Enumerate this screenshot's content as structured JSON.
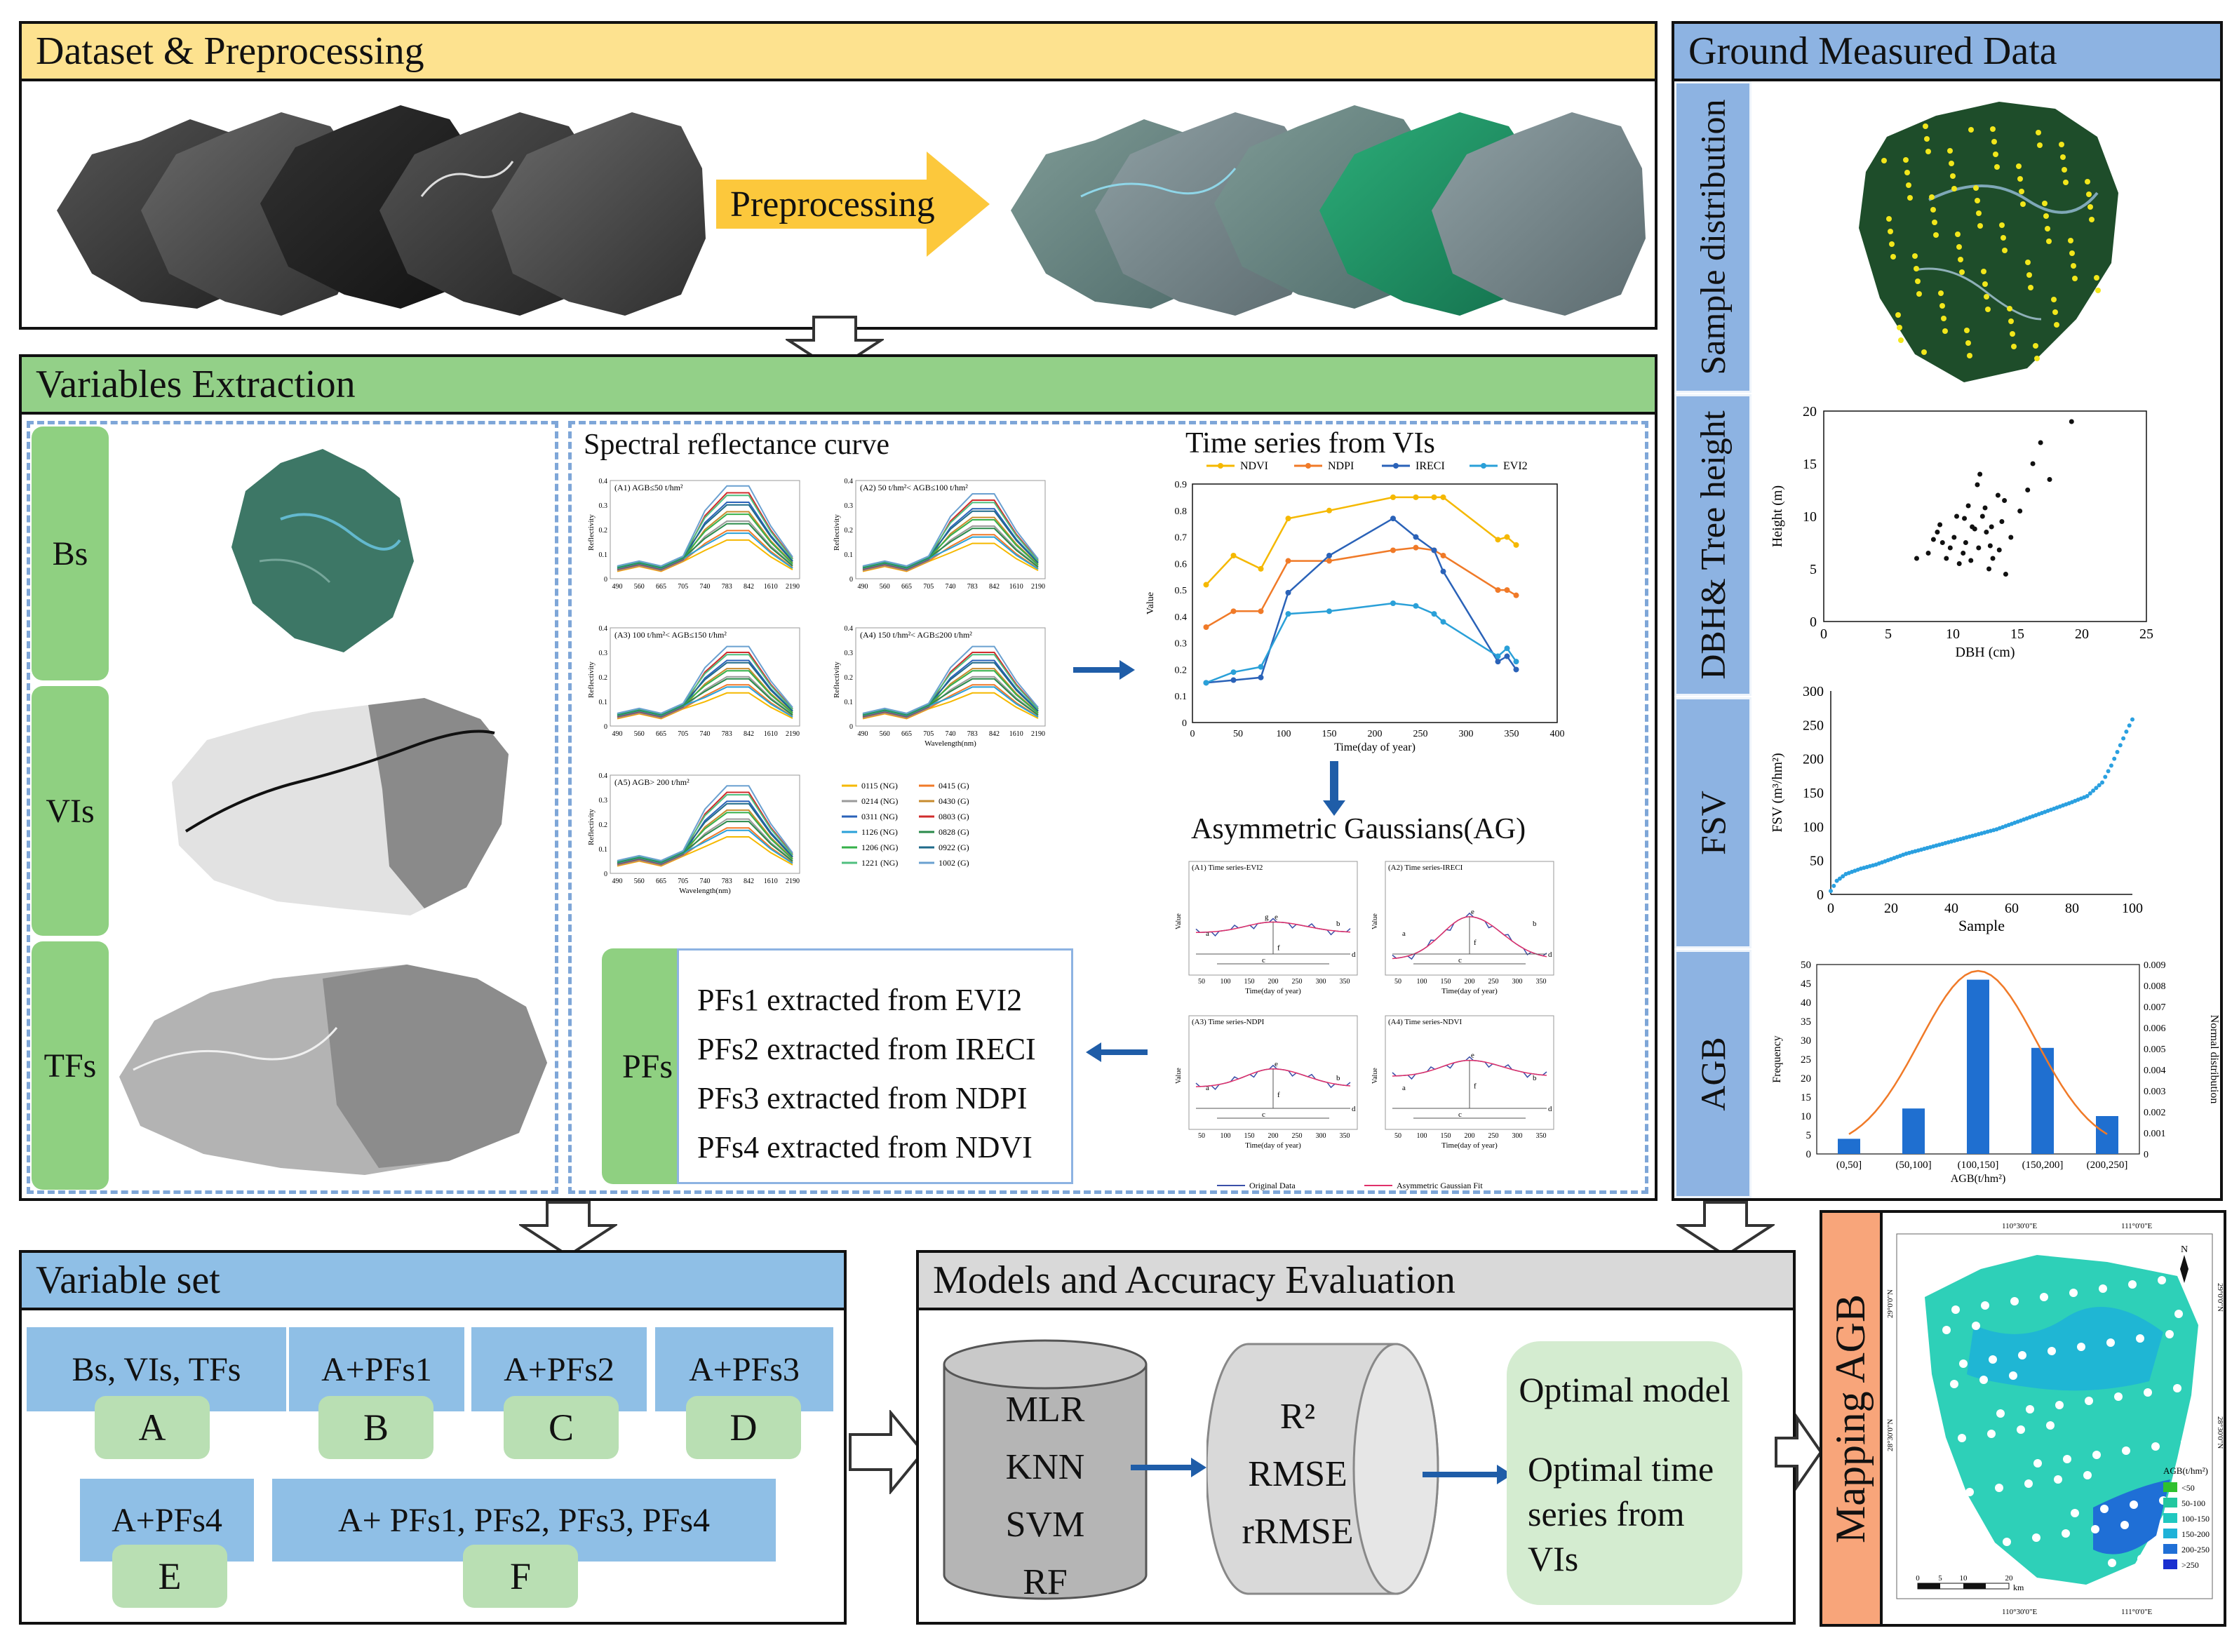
{
  "sections": {
    "dataset": "Dataset & Preprocessing",
    "ground": "Ground Measured Data",
    "variables": "Variables Extraction",
    "variable_set": "Variable set",
    "models": "Models and Accuracy Evaluation",
    "mapping": "Mapping AGB"
  },
  "preprocessing_label": "Preprocessing",
  "var_tags": [
    "Bs",
    "VIs",
    "TFs"
  ],
  "spectral": {
    "title": "Spectral reflectance curve",
    "panels": [
      "(A1) AGB≤50 t/hm²",
      "(A2) 50 t/hm²< AGB≤100 t/hm²",
      "(A3) 100 t/hm²< AGB≤150 t/hm²",
      "(A4) 150 t/hm²< AGB≤200 t/hm²",
      "(A5) AGB> 200 t/hm²"
    ],
    "ylabel": "Reflectivity",
    "xlabel": "Wavelength(nm)",
    "wavelengths": [
      "490",
      "560",
      "665",
      "705",
      "740",
      "783",
      "842",
      "1610",
      "2190"
    ],
    "yticks": [
      "0",
      "0.1",
      "0.2",
      "0.3",
      "0.4"
    ],
    "legend": [
      "0115 (NG)",
      "0415 (G)",
      "0214 (NG)",
      "0430 (G)",
      "0311 (NG)",
      "0803 (G)",
      "1126 (NG)",
      "0828 (G)",
      "1206 (NG)",
      "0922 (G)",
      "1221 (NG)",
      "1002 (G)"
    ]
  },
  "timeseries": {
    "title": "Time series from VIs",
    "legend": [
      "NDVI",
      "NDPI",
      "IRECI",
      "EVI2"
    ],
    "ylabel": "Value",
    "xlabel": "Time(day of year)",
    "colors": {
      "NDVI": "#f5b800",
      "NDPI": "#f07a28",
      "IRECI": "#2a62b8",
      "EVI2": "#2aa0d8"
    }
  },
  "chart_data": [
    {
      "type": "line",
      "title": "Time series from VIs",
      "xlabel": "Time(day of year)",
      "ylabel": "Value",
      "xlim": [
        0,
        400
      ],
      "ylim": [
        0,
        0.9
      ],
      "xticks": [
        0,
        50,
        100,
        150,
        200,
        250,
        300,
        350,
        400
      ],
      "yticks": [
        0,
        0.1,
        0.2,
        0.3,
        0.4,
        0.5,
        0.6,
        0.7,
        0.8,
        0.9
      ],
      "series": [
        {
          "name": "NDVI",
          "x": [
            15,
            45,
            75,
            105,
            150,
            220,
            245,
            265,
            275,
            335,
            345,
            355
          ],
          "y": [
            0.52,
            0.63,
            0.58,
            0.77,
            0.8,
            0.85,
            0.85,
            0.85,
            0.85,
            0.69,
            0.7,
            0.67
          ]
        },
        {
          "name": "NDPI",
          "x": [
            15,
            45,
            75,
            105,
            150,
            220,
            245,
            265,
            275,
            335,
            345,
            355
          ],
          "y": [
            0.36,
            0.42,
            0.42,
            0.61,
            0.61,
            0.65,
            0.66,
            0.65,
            0.63,
            0.5,
            0.5,
            0.48
          ]
        },
        {
          "name": "IRECI",
          "x": [
            15,
            45,
            75,
            105,
            150,
            220,
            245,
            265,
            275,
            335,
            345,
            355
          ],
          "y": [
            0.15,
            0.16,
            0.17,
            0.49,
            0.63,
            0.77,
            0.7,
            0.65,
            0.57,
            0.23,
            0.25,
            0.2
          ]
        },
        {
          "name": "EVI2",
          "x": [
            15,
            45,
            75,
            105,
            150,
            220,
            245,
            265,
            275,
            335,
            345,
            355
          ],
          "y": [
            0.15,
            0.19,
            0.21,
            0.41,
            0.42,
            0.45,
            0.44,
            0.41,
            0.38,
            0.25,
            0.28,
            0.23
          ]
        }
      ]
    },
    {
      "type": "scatter",
      "title": "DBH& Tree height",
      "xlabel": "DBH (cm)",
      "ylabel": "Height (m)",
      "xlim": [
        0,
        25
      ],
      "ylim": [
        0,
        20
      ],
      "xticks": [
        0,
        5,
        10,
        15,
        20,
        25
      ],
      "yticks": [
        0,
        5,
        10,
        15,
        20
      ],
      "x": [
        9.2,
        10.1,
        10.8,
        11.5,
        12.0,
        12.6,
        13.1,
        13.8,
        14.5,
        15.2,
        8.1,
        9.8,
        11.2,
        12.3,
        13.5,
        10.5,
        11.9,
        12.8,
        14.1,
        16.2,
        17.5,
        19.2,
        8.8,
        9.5,
        10.3,
        11.0,
        12.1,
        13.0,
        14.0,
        7.2,
        8.5,
        11.7,
        12.9,
        13.6,
        15.8,
        16.8,
        10.9,
        11.4,
        12.5,
        9.0
      ],
      "y": [
        7.5,
        8.0,
        6.5,
        9.0,
        7.0,
        8.5,
        6.0,
        9.5,
        8.0,
        10.5,
        6.5,
        7.0,
        11.0,
        10.0,
        12.0,
        5.5,
        13.0,
        5.0,
        4.5,
        15.0,
        13.5,
        19.0,
        8.5,
        6.0,
        10.0,
        7.5,
        14.0,
        9.0,
        11.5,
        6.0,
        7.8,
        8.8,
        7.2,
        6.8,
        12.5,
        17.0,
        9.8,
        5.8,
        10.8,
        9.2
      ]
    },
    {
      "type": "scatter",
      "title": "FSV",
      "xlabel": "Sample",
      "ylabel": "FSV (m³/hm²)",
      "xlim": [
        0,
        100
      ],
      "ylim": [
        0,
        300
      ],
      "xticks": [
        0,
        20,
        40,
        60,
        80,
        100
      ],
      "yticks": [
        0,
        50,
        100,
        150,
        200,
        250,
        300
      ],
      "x": [
        0,
        2,
        5,
        10,
        15,
        20,
        25,
        30,
        35,
        40,
        45,
        50,
        55,
        60,
        65,
        70,
        75,
        80,
        85,
        90,
        93,
        96,
        98,
        100
      ],
      "y": [
        5,
        20,
        30,
        38,
        44,
        52,
        60,
        66,
        72,
        78,
        84,
        90,
        96,
        104,
        112,
        120,
        128,
        136,
        145,
        165,
        190,
        220,
        240,
        258
      ]
    },
    {
      "type": "bar",
      "title": "AGB",
      "xlabel": "AGB(t/hm²)",
      "ylabel": "Frequency",
      "y2label": "Normal distribution",
      "categories": [
        "(0,50]",
        "(50,100]",
        "(100,150]",
        "(150,200]",
        "(200,250]"
      ],
      "values": [
        4,
        12,
        46,
        28,
        10
      ],
      "ylim": [
        0,
        50
      ],
      "y2lim": [
        0,
        0.009
      ],
      "yticks": [
        0,
        5,
        10,
        15,
        20,
        25,
        30,
        35,
        40,
        45,
        50
      ],
      "y2ticks": [
        0,
        0.001,
        0.002,
        0.003,
        0.004,
        0.005,
        0.006,
        0.007,
        0.008,
        0.009
      ],
      "normal_curve": [
        0.0011,
        0.0044,
        0.0083,
        0.0044,
        0.0011
      ]
    }
  ],
  "ag": {
    "title": "Asymmetric Gaussians(AG)",
    "panels": [
      "(A1) Time series-EVI2",
      "(A2) Time series-IRECI",
      "(A3) Time series-NDPI",
      "(A4) Time series-NDVI"
    ],
    "xlabel": "Time(day of year)",
    "ylabel": "Value",
    "xticks": [
      "50",
      "100",
      "150",
      "200",
      "250",
      "300",
      "350"
    ],
    "letters": [
      "a",
      "b",
      "c",
      "d",
      "e",
      "f",
      "g"
    ],
    "legend": [
      "Original Data",
      "Asymmetric Gaussian Fit"
    ]
  },
  "pfs": {
    "tag": "PFs",
    "lines": [
      "PFs1 extracted from EVI2",
      "PFs2 extracted from IRECI",
      "PFs3 extracted from NDPI",
      "PFs4 extracted from NDVI"
    ]
  },
  "ground_tags": [
    "Sample distribution",
    "DBH& Tree height",
    "FSV",
    "AGB"
  ],
  "dbh_plot": {
    "xlabel": "DBH (cm)",
    "ylabel": "Height (m)",
    "xticks": [
      "0",
      "5",
      "10",
      "15",
      "20",
      "25"
    ],
    "yticks": [
      "0",
      "5",
      "10",
      "15",
      "20"
    ]
  },
  "fsv_plot": {
    "xlabel": "Sample",
    "ylabel": "FSV (m³/hm²)",
    "xticks": [
      "0",
      "20",
      "40",
      "60",
      "80",
      "100"
    ],
    "yticks": [
      "0",
      "50",
      "100",
      "150",
      "200",
      "250",
      "300"
    ]
  },
  "agb_plot": {
    "xlabel": "AGB(t/hm²)",
    "ylabel": "Frequency",
    "y2label": "Normal distribution",
    "categories": [
      "(0,50]",
      "(50,100]",
      "(100,150]",
      "(150,200]",
      "(200,250]"
    ],
    "yticks": [
      "0",
      "5",
      "10",
      "15",
      "20",
      "25",
      "30",
      "35",
      "40",
      "45",
      "50"
    ],
    "y2ticks": [
      "0",
      "0.001",
      "0.002",
      "0.003",
      "0.004",
      "0.005",
      "0.006",
      "0.007",
      "0.008",
      "0.009"
    ]
  },
  "variable_set": {
    "boxes": [
      "Bs, VIs, TFs",
      "A+PFs1",
      "A+PFs2",
      "A+PFs3",
      "A+PFs4",
      "A+ PFs1, PFs2, PFs3, PFs4"
    ],
    "letters": [
      "A",
      "B",
      "C",
      "D",
      "E",
      "F"
    ]
  },
  "models": {
    "algorithms": [
      "MLR",
      "KNN",
      "SVM",
      "RF"
    ],
    "metrics": [
      "R²",
      "RMSE",
      "rRMSE"
    ],
    "optimal_title": "Optimal model",
    "optimal_desc": "Optimal time series from VIs"
  },
  "map": {
    "lon_labels": [
      "110°30'0\"E",
      "111°0'0\"E"
    ],
    "lat_labels": [
      "29°0'0\"N",
      "28°30'0\"N"
    ],
    "north": "N",
    "legend_title": "AGB(t/hm²)",
    "legend": [
      "<50",
      "50-100",
      "100-150",
      "150-200",
      "200-250",
      ">250"
    ],
    "legend_colors": [
      "#2fc02f",
      "#22c7a0",
      "#20c8c0",
      "#1fb2d8",
      "#1f6fd6",
      "#1a2fd0"
    ],
    "scale": [
      "0",
      "5",
      "10",
      "20",
      "km"
    ]
  }
}
